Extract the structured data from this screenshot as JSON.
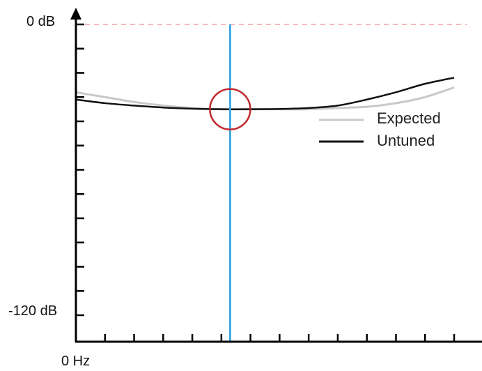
{
  "chart_data": {
    "type": "line",
    "title": "",
    "xlabel": "",
    "ylabel": "",
    "y_top_label": "0 dB",
    "y_bottom_label": "-120 dB",
    "x_origin_label": "0 Hz",
    "ylim": [
      -120,
      0
    ],
    "xlim": [
      0,
      13
    ],
    "grid": false,
    "legend_position": "right",
    "reference_line": {
      "y": 0,
      "color": "#f2a0a0",
      "style": "dashed"
    },
    "marker_line": {
      "x": 5.3,
      "color": "#3aa9e0"
    },
    "highlight_circle": {
      "x": 5.3,
      "y": -35,
      "color": "#c0282d"
    },
    "series": [
      {
        "name": "Expected",
        "color": "#c8c8c8",
        "x": [
          0,
          1,
          2,
          3,
          4,
          5,
          6,
          7,
          8,
          9,
          10,
          11,
          12,
          13
        ],
        "y": [
          -28,
          -30,
          -32,
          -33.5,
          -34.5,
          -35,
          -35,
          -35,
          -35,
          -34.5,
          -34,
          -32.5,
          -30,
          -26
        ]
      },
      {
        "name": "Untuned",
        "color": "#111111",
        "x": [
          0,
          1,
          2,
          3,
          4,
          5,
          6,
          7,
          8,
          9,
          10,
          11,
          12,
          13
        ],
        "y": [
          -31,
          -32.5,
          -33.5,
          -34.3,
          -34.8,
          -35,
          -35,
          -34.9,
          -34.5,
          -33.5,
          -31,
          -28,
          -24.5,
          -22
        ]
      }
    ]
  }
}
